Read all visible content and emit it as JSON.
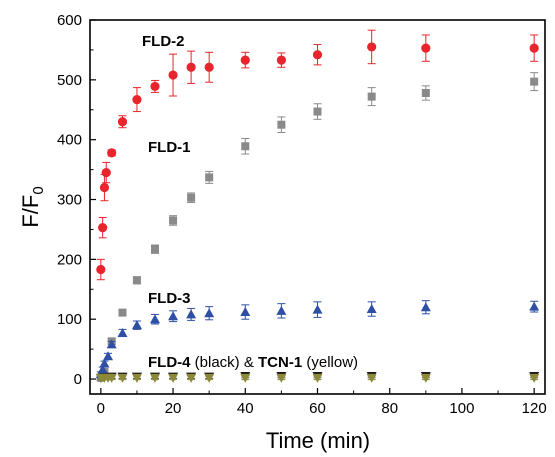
{
  "chart_data": {
    "type": "scatter",
    "xlabel": "Time (min)",
    "ylabel": "F/F",
    "ylabel_subscript": "0",
    "xlim": [
      -3,
      123
    ],
    "ylim": [
      -25,
      600
    ],
    "xticks": [
      0,
      20,
      40,
      60,
      80,
      100,
      120
    ],
    "yticks": [
      0,
      100,
      200,
      300,
      400,
      500,
      600
    ],
    "grid": false,
    "legend": "none",
    "annotations": {
      "fld2": "FLD-2",
      "fld1": "FLD-1",
      "fld3": "FLD-3",
      "fld4_bold": "FLD-4",
      "fld4_note": " (black) & ",
      "tcn1_bold": "TCN-1",
      "tcn1_note": " (yellow)"
    },
    "series": [
      {
        "key": "fld2",
        "marker": "circle",
        "color": "#e8242c",
        "points": [
          [
            0,
            183,
            17
          ],
          [
            0.5,
            253,
            17
          ],
          [
            1,
            320,
            22
          ],
          [
            1.5,
            345,
            17
          ],
          [
            3,
            378,
            5
          ],
          [
            6,
            430,
            10
          ],
          [
            10,
            467,
            20
          ],
          [
            15,
            489,
            10
          ],
          [
            20,
            508,
            35
          ],
          [
            25,
            521,
            27
          ],
          [
            30,
            521,
            25
          ],
          [
            40,
            533,
            13
          ],
          [
            50,
            533,
            12
          ],
          [
            60,
            542,
            17
          ],
          [
            75,
            555,
            28
          ],
          [
            90,
            553,
            22
          ],
          [
            120,
            553,
            22
          ]
        ]
      },
      {
        "key": "fld1",
        "marker": "square",
        "color": "#8a8a8a",
        "points": [
          [
            0,
            2,
            3
          ],
          [
            1,
            12,
            4
          ],
          [
            3,
            63,
            5
          ],
          [
            6,
            111,
            5
          ],
          [
            10,
            165,
            6
          ],
          [
            15,
            217,
            7
          ],
          [
            20,
            265,
            8
          ],
          [
            25,
            303,
            8
          ],
          [
            30,
            337,
            10
          ],
          [
            40,
            389,
            13
          ],
          [
            50,
            425,
            13
          ],
          [
            60,
            447,
            13
          ],
          [
            75,
            472,
            15
          ],
          [
            90,
            478,
            12
          ],
          [
            120,
            497,
            15
          ]
        ]
      },
      {
        "key": "fld3",
        "marker": "triangle-up",
        "color": "#2e4fa3",
        "points": [
          [
            0,
            8,
            4
          ],
          [
            0.5,
            16,
            4
          ],
          [
            1,
            26,
            4
          ],
          [
            2,
            38,
            5
          ],
          [
            3,
            58,
            5
          ],
          [
            6,
            77,
            6
          ],
          [
            10,
            90,
            7
          ],
          [
            15,
            100,
            8
          ],
          [
            20,
            105,
            9
          ],
          [
            25,
            108,
            10
          ],
          [
            30,
            110,
            11
          ],
          [
            40,
            112,
            12
          ],
          [
            50,
            114,
            12
          ],
          [
            60,
            116,
            13
          ],
          [
            75,
            117,
            12
          ],
          [
            90,
            120,
            11
          ],
          [
            120,
            121,
            9
          ]
        ]
      },
      {
        "key": "fld4",
        "marker": "triangle-down",
        "color": "#1a1a1a",
        "points": [
          [
            0,
            2,
            3
          ],
          [
            1,
            3,
            3
          ],
          [
            2,
            3,
            3
          ],
          [
            3,
            4,
            3
          ],
          [
            6,
            4,
            3
          ],
          [
            10,
            4,
            3
          ],
          [
            15,
            4,
            3
          ],
          [
            20,
            4,
            3
          ],
          [
            25,
            4,
            3
          ],
          [
            30,
            4,
            3
          ],
          [
            40,
            5,
            3
          ],
          [
            50,
            5,
            3
          ],
          [
            60,
            5,
            3
          ],
          [
            75,
            5,
            3
          ],
          [
            90,
            5,
            3
          ],
          [
            120,
            5,
            3
          ]
        ]
      },
      {
        "key": "tcn1",
        "marker": "triangle-down",
        "color": "#8c8a3a",
        "points": [
          [
            0,
            2,
            3
          ],
          [
            1,
            2,
            3
          ],
          [
            2,
            2,
            3
          ],
          [
            3,
            2,
            3
          ],
          [
            6,
            2,
            3
          ],
          [
            10,
            2,
            3
          ],
          [
            15,
            2,
            3
          ],
          [
            20,
            2,
            3
          ],
          [
            25,
            2,
            3
          ],
          [
            30,
            2,
            3
          ],
          [
            40,
            2,
            3
          ],
          [
            50,
            2,
            3
          ],
          [
            60,
            2,
            3
          ],
          [
            75,
            2,
            3
          ],
          [
            90,
            2,
            3
          ],
          [
            120,
            2,
            3
          ]
        ]
      }
    ]
  }
}
